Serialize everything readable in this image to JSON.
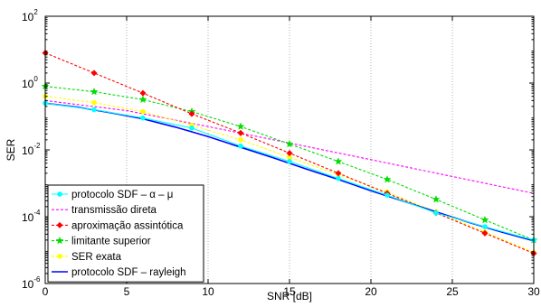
{
  "chart_data": {
    "type": "line",
    "title": "",
    "xlabel": "SNR [dB]",
    "ylabel": "SER",
    "xlim": [
      0,
      30
    ],
    "ylim_log10": [
      -6,
      2
    ],
    "y_scale": "log",
    "grid": "vertical dotted",
    "legend_position": "bottom-left",
    "x_ticks": [
      "0",
      "5",
      "10",
      "15",
      "20",
      "25",
      "30"
    ],
    "y_ticks": [
      {
        "base": "10",
        "exp": "2",
        "log10": 2
      },
      {
        "base": "10",
        "exp": "0",
        "log10": 0
      },
      {
        "base": "10",
        "exp": "-2",
        "log10": -2
      },
      {
        "base": "10",
        "exp": "-4",
        "log10": -4
      },
      {
        "base": "10",
        "exp": "-6",
        "log10": -6
      }
    ],
    "series": [
      {
        "name": "protocolo SDF – α – μ",
        "color": "#00ffff",
        "style": "solid",
        "marker": "circle",
        "x": [
          0,
          3,
          6,
          9,
          12,
          15,
          18,
          21,
          24,
          27,
          30
        ],
        "y": [
          0.25,
          0.16,
          0.09,
          0.045,
          0.013,
          0.0045,
          0.0014,
          0.00044,
          0.00013,
          5e-05,
          2e-05
        ]
      },
      {
        "name": "transmissão direta",
        "color": "#ff00ff",
        "style": "dashed",
        "marker": "none",
        "x": [
          0,
          5,
          10,
          15,
          20,
          25,
          30
        ],
        "y": [
          0.3,
          0.15,
          0.05,
          0.016,
          0.0051,
          0.0016,
          0.0005
        ]
      },
      {
        "name": "aproximação assintótica",
        "color": "#ff0000",
        "style": "dashed",
        "marker": "diamond",
        "x": [
          0,
          3,
          6,
          9,
          12,
          15,
          18,
          21,
          24,
          27,
          30
        ],
        "y": [
          8,
          2,
          0.5,
          0.12,
          0.032,
          0.008,
          0.002,
          0.0005,
          0.00013,
          3.2e-05,
          8e-06
        ]
      },
      {
        "name": "limitante superior",
        "color": "#00dd00",
        "style": "dashed",
        "marker": "star",
        "x": [
          0,
          3,
          6,
          9,
          12,
          15,
          18,
          21,
          24,
          27,
          30
        ],
        "y": [
          0.8,
          0.55,
          0.32,
          0.14,
          0.05,
          0.015,
          0.0045,
          0.0013,
          0.00033,
          8e-05,
          2e-05
        ]
      },
      {
        "name": "SER exata",
        "color": "#ffff00",
        "style": "dashed",
        "marker": "circle",
        "x": [
          0,
          3,
          6,
          9,
          12,
          15,
          18,
          21,
          24,
          27,
          30
        ],
        "y": [
          0.4,
          0.26,
          0.14,
          0.055,
          0.02,
          0.006,
          0.0018,
          0.00055,
          0.00014,
          3.5e-05,
          8.5e-06
        ]
      },
      {
        "name": "protocolo SDF – rayleigh",
        "color": "#0000ff",
        "style": "solid",
        "marker": "none",
        "x": [
          0,
          2,
          4,
          6,
          8,
          10,
          12,
          14,
          16,
          18,
          20,
          22,
          24,
          26,
          28,
          30
        ],
        "y": [
          0.25,
          0.19,
          0.13,
          0.085,
          0.048,
          0.025,
          0.012,
          0.0058,
          0.0027,
          0.0013,
          0.0006,
          0.00029,
          0.00014,
          6.8e-05,
          3.5e-05,
          1.9e-05
        ]
      }
    ]
  }
}
